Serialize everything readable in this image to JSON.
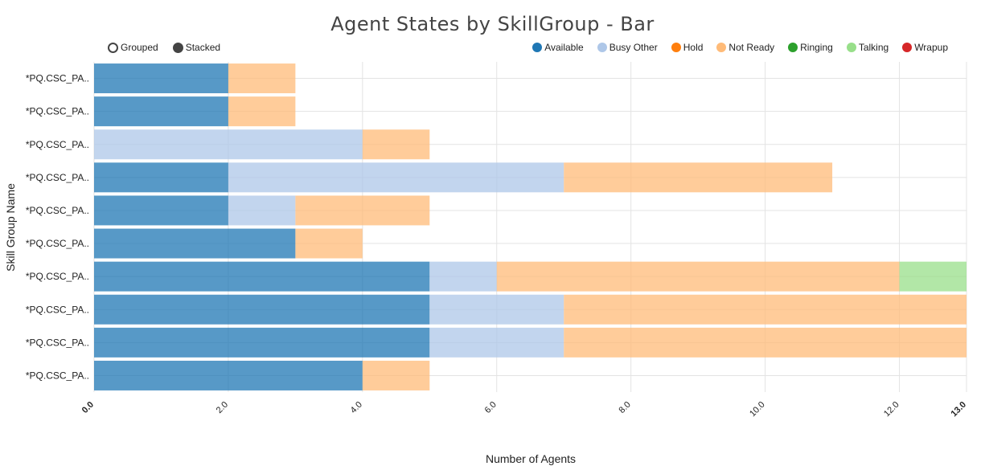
{
  "chart_data": {
    "type": "bar",
    "orientation": "horizontal",
    "stacked": true,
    "title": "Agent States by SkillGroup - Bar",
    "xlabel": "Number of Agents",
    "ylabel": "Skill Group Name",
    "xlim": [
      0,
      13
    ],
    "xticks": [
      "0.0",
      "2.0",
      "4.0",
      "6.0",
      "8.0",
      "10.0",
      "12.0",
      "13.0"
    ],
    "grid": true,
    "legend_position": "top-right",
    "categories": [
      "*PQ.CSC_PA..",
      "*PQ.CSC_PA..",
      "*PQ.CSC_PA..",
      "*PQ.CSC_PA..",
      "*PQ.CSC_PA..",
      "*PQ.CSC_PA..",
      "*PQ.CSC_PA..",
      "*PQ.CSC_PA..",
      "*PQ.CSC_PA..",
      "*PQ.CSC_PA.."
    ],
    "series": [
      {
        "name": "Available",
        "color": "#1f77b4",
        "values": [
          2,
          2,
          0,
          2,
          2,
          3,
          5,
          5,
          5,
          4
        ]
      },
      {
        "name": "Busy Other",
        "color": "#aec7e8",
        "values": [
          0,
          0,
          4,
          5,
          1,
          0,
          1,
          2,
          2,
          0
        ]
      },
      {
        "name": "Hold",
        "color": "#ff7f0e",
        "values": [
          0,
          0,
          0,
          0,
          0,
          0,
          0,
          0,
          0,
          0
        ]
      },
      {
        "name": "Not Ready",
        "color": "#ffbb78",
        "values": [
          1,
          1,
          1,
          4,
          2,
          1,
          6,
          6,
          6,
          1
        ]
      },
      {
        "name": "Ringing",
        "color": "#2ca02c",
        "values": [
          0,
          0,
          0,
          0,
          0,
          0,
          0,
          0,
          0,
          0
        ]
      },
      {
        "name": "Talking",
        "color": "#98df8a",
        "values": [
          0,
          0,
          0,
          0,
          0,
          0,
          1,
          0,
          0,
          0
        ]
      },
      {
        "name": "Wrapup",
        "color": "#d62728",
        "values": [
          0,
          0,
          0,
          0,
          0,
          0,
          0,
          0,
          0,
          0
        ]
      }
    ]
  },
  "controls": {
    "grouped_label": "Grouped",
    "stacked_label": "Stacked",
    "selected": "Stacked"
  }
}
